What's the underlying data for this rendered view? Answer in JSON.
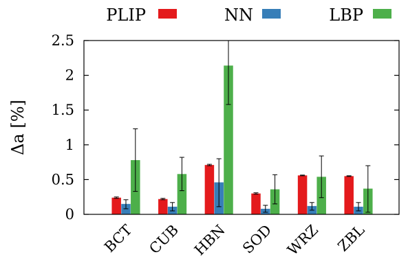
{
  "chart_data": {
    "type": "bar",
    "categories": [
      "BCT",
      "CUB",
      "HBN",
      "SOD",
      "WRZ",
      "ZBL"
    ],
    "series": [
      {
        "name": "PLIP",
        "color": "#e41a1c",
        "values": [
          0.24,
          0.22,
          0.71,
          0.3,
          0.56,
          0.55
        ],
        "err_low": [
          0.23,
          0.21,
          0.7,
          0.29,
          0.555,
          0.545
        ],
        "err_high": [
          0.25,
          0.23,
          0.72,
          0.31,
          0.565,
          0.555
        ]
      },
      {
        "name": "NN",
        "color": "#377eb8",
        "values": [
          0.15,
          0.11,
          0.46,
          0.08,
          0.12,
          0.11
        ],
        "err_low": [
          0.08,
          0.05,
          0.11,
          0.03,
          0.06,
          0.05
        ],
        "err_high": [
          0.21,
          0.17,
          0.8,
          0.13,
          0.17,
          0.17
        ]
      },
      {
        "name": "LBP",
        "color": "#4daf4a",
        "values": [
          0.78,
          0.58,
          2.14,
          0.36,
          0.54,
          0.37
        ],
        "err_low": [
          0.33,
          0.34,
          1.58,
          0.15,
          0.24,
          0.03
        ],
        "err_high": [
          1.23,
          0.82,
          2.5,
          0.57,
          0.84,
          0.7
        ]
      }
    ],
    "ylabel": "Δa [%]",
    "ylim": [
      0,
      2.5
    ],
    "yticks": [
      "0",
      "0.5",
      "1",
      "1.5",
      "2",
      "2.5"
    ],
    "grid": false,
    "legend_position": "top"
  }
}
